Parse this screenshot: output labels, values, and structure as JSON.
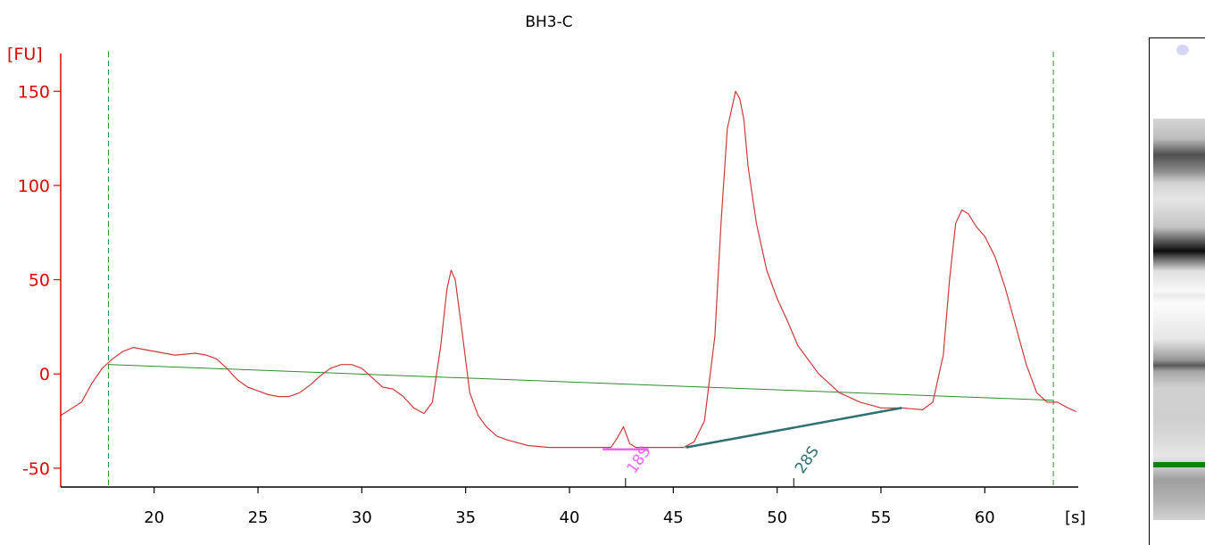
{
  "chart_data": {
    "type": "line",
    "title": "BH3-C",
    "ylabel": "[FU]",
    "xlabel": "[s]",
    "xlim": [
      15.5,
      64.5
    ],
    "ylim": [
      -60,
      170
    ],
    "yticks": [
      -50,
      0,
      50,
      100,
      150
    ],
    "ytick_labels": [
      "-50",
      "0",
      "50",
      "100",
      "150"
    ],
    "xticks": [
      20,
      25,
      30,
      35,
      40,
      45,
      50,
      55,
      60
    ],
    "xtick_labels": [
      "20",
      "25",
      "30",
      "35",
      "40",
      "45",
      "50",
      "55",
      "60"
    ],
    "grid": false,
    "series": [
      {
        "color": "#cc3a3a",
        "x": [
          15.5,
          16.5,
          17.0,
          17.5,
          18.0,
          18.5,
          19.0,
          20.0,
          21.0,
          22.0,
          22.5,
          23.0,
          23.5,
          24.0,
          24.5,
          25.0,
          25.5,
          26.0,
          26.5,
          27.0,
          27.5,
          28.0,
          28.5,
          29.0,
          29.5,
          30.0,
          30.5,
          31.0,
          31.5,
          32.0,
          32.5,
          33.0,
          33.4,
          33.8,
          34.1,
          34.3,
          34.5,
          34.8,
          35.2,
          35.6,
          36.0,
          36.5,
          37.0,
          38.0,
          39.0,
          40.0,
          41.0,
          42.0,
          42.3,
          42.6,
          42.9,
          43.2,
          44.0,
          45.0,
          45.5,
          46.0,
          46.5,
          47.0,
          47.3,
          47.6,
          48.0,
          48.2,
          48.4,
          48.6,
          49.0,
          49.5,
          50.0,
          50.5,
          51.0,
          52.0,
          53.0,
          54.0,
          55.0,
          56.0,
          57.0,
          57.5,
          58.0,
          58.3,
          58.6,
          58.9,
          59.2,
          59.6,
          60.0,
          60.5,
          61.0,
          61.5,
          62.0,
          62.5,
          63.0,
          63.5,
          64.0,
          64.4
        ],
        "y": [
          -22,
          -15,
          -5,
          3,
          8,
          12,
          14,
          12,
          10,
          11,
          10,
          8,
          3,
          -3,
          -7,
          -9,
          -11,
          -12,
          -12,
          -10,
          -6,
          -1,
          3,
          5,
          5,
          3,
          -2,
          -7,
          -8,
          -12,
          -18,
          -21,
          -15,
          15,
          45,
          55,
          50,
          25,
          -10,
          -22,
          -28,
          -33,
          -35,
          -38,
          -39,
          -39,
          -39,
          -39,
          -34,
          -28,
          -37,
          -39,
          -39,
          -39,
          -39,
          -36,
          -25,
          20,
          80,
          130,
          150,
          146,
          135,
          110,
          80,
          55,
          40,
          28,
          15,
          0,
          -10,
          -15,
          -18,
          -18,
          -19,
          -15,
          10,
          50,
          80,
          87,
          85,
          78,
          73,
          62,
          45,
          25,
          5,
          -10,
          -15,
          -15,
          -18,
          -20
        ]
      }
    ],
    "baseline": {
      "color": "#2e8b2e",
      "x": [
        17.8,
        63.3
      ],
      "y": [
        5,
        -14
      ]
    },
    "markers": [
      {
        "x": 17.8,
        "color": "#2e8b2e",
        "style": "dashed"
      },
      {
        "x": 63.3,
        "color": "#2e8b2e",
        "style": "dashed"
      }
    ],
    "peak_annotations": [
      {
        "label": "18S",
        "color": "#ee66ee",
        "x": 42.7,
        "line_x": [
          41.6,
          43.8
        ],
        "line_y": [
          -40,
          -40
        ]
      },
      {
        "label": "28S",
        "color": "#2f7070",
        "x": 50.8,
        "line_x": [
          45.6,
          56.0
        ],
        "line_y": [
          -39,
          -18
        ]
      }
    ],
    "colors": {
      "y_axis": "#e00000",
      "x_axis": "#000000"
    }
  },
  "gel": {
    "marker_color": "#108010"
  }
}
